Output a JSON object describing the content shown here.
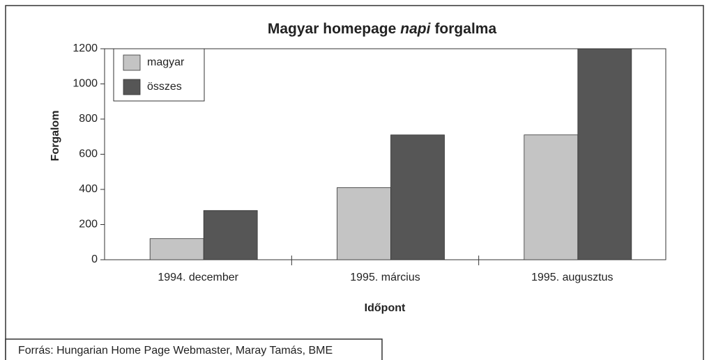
{
  "chart_data": {
    "type": "bar",
    "title": [
      "Magyar homepage",
      "napi",
      "forgalma"
    ],
    "categories": [
      "1994. december",
      "1995. március",
      "1995. augusztus"
    ],
    "series": [
      {
        "name": "magyar",
        "color": "#c4c4c4",
        "values": [
          120,
          410,
          710
        ]
      },
      {
        "name": "összes",
        "color": "#565656",
        "values": [
          280,
          710,
          1200
        ]
      }
    ],
    "ylim": [
      0,
      1200
    ],
    "yticks": [
      0,
      200,
      400,
      600,
      800,
      1000,
      1200
    ],
    "xlabel": "Időpont",
    "ylabel": "Forgalom",
    "legend": "upper left",
    "source": "Forrás: Hungarian Home Page Webmaster, Maray Tamás, BME"
  }
}
